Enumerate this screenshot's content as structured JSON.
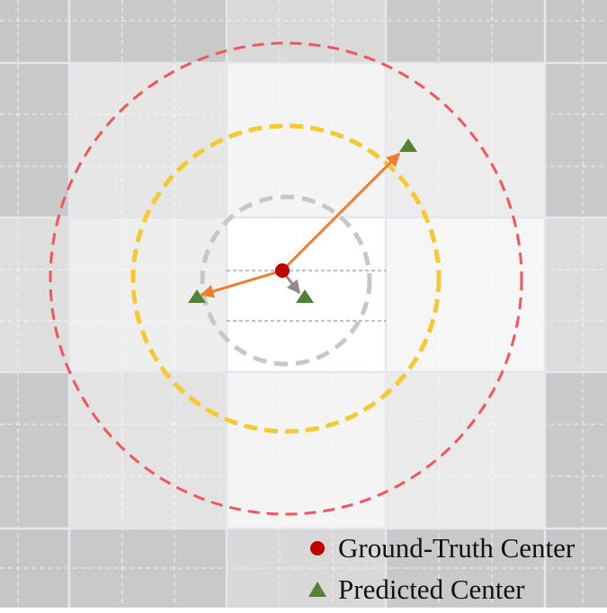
{
  "legend": {
    "items": [
      {
        "label": "Ground-Truth Center",
        "marker": "red-circle",
        "color": "#c00000"
      },
      {
        "label": "Predicted Center",
        "marker": "green-triangle",
        "color": "#548235"
      }
    ]
  },
  "colors": {
    "outer_ring": "#f2565a",
    "middle_ring": "#f5c932",
    "inner_ring": "#c7c7c7",
    "arrow_orange": "#ed7d31",
    "arrow_gray": "#8c8c8c",
    "ground_truth": "#c00000",
    "predicted": "#548235"
  }
}
